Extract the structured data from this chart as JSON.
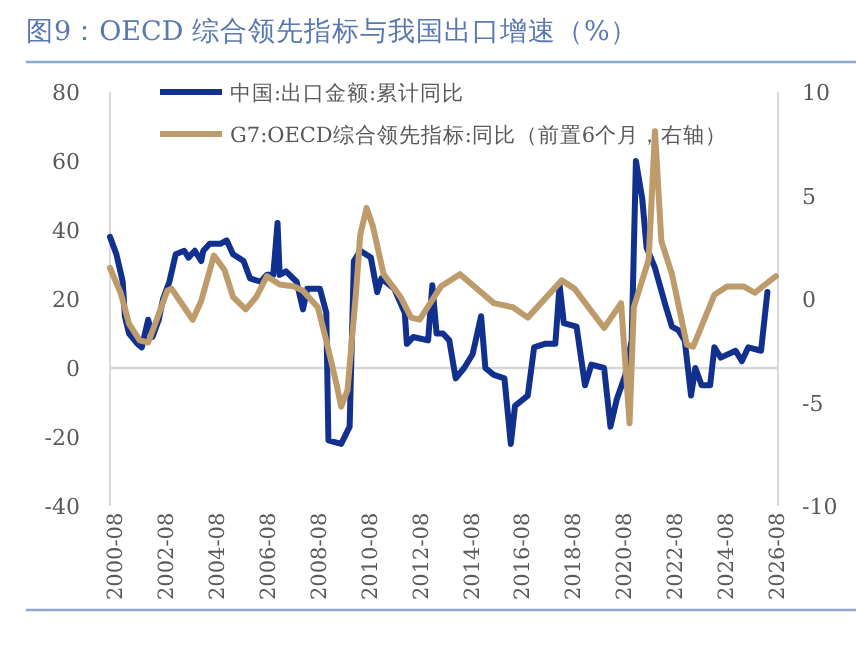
{
  "chart_data": {
    "type": "line",
    "title": "图9：OECD 综合领先指标与我国出口增速（%）",
    "xlim": [
      "2000-06",
      "2026-09"
    ],
    "xticks": [
      "2000-08",
      "2002-08",
      "2004-08",
      "2006-08",
      "2008-08",
      "2010-08",
      "2012-08",
      "2014-08",
      "2016-08",
      "2018-08",
      "2020-08",
      "2022-08",
      "2024-08",
      "2026-08"
    ],
    "ylim": [
      -40,
      80
    ],
    "yticks": [
      -40,
      -20,
      0,
      20,
      40,
      60,
      80
    ],
    "y2lim": [
      -10,
      10
    ],
    "y2ticks": [
      -10,
      -5,
      0,
      5,
      10
    ],
    "legend": "top left",
    "grid": false,
    "marker": "none",
    "line_style": "solid",
    "ref_lines": [
      {
        "axis": "y",
        "value": 0,
        "color": "#d9d9d9"
      }
    ],
    "series": [
      {
        "name": "中国:出口金额:累计同比",
        "color": "#12318f",
        "x": [
          "2000-06",
          "2000-09",
          "2000-12",
          "2001-01",
          "2001-03",
          "2001-07",
          "2001-09",
          "2001-12",
          "2002-02",
          "2002-05",
          "2002-07",
          "2002-10",
          "2003-01",
          "2003-05",
          "2003-07",
          "2003-10",
          "2004-01",
          "2004-02",
          "2004-05",
          "2004-10",
          "2005-01",
          "2005-04",
          "2005-09",
          "2005-12",
          "2006-05",
          "2006-08",
          "2006-11",
          "2007-01",
          "2007-02",
          "2007-05",
          "2007-10",
          "2008-01",
          "2008-03",
          "2008-09",
          "2008-12",
          "2009-01",
          "2009-07",
          "2009-11",
          "2010-01",
          "2010-04",
          "2010-09",
          "2010-12",
          "2011-02",
          "2011-08",
          "2012-01",
          "2012-02",
          "2012-05",
          "2012-12",
          "2013-02",
          "2013-04",
          "2013-07",
          "2013-10",
          "2014-01",
          "2014-05",
          "2014-09",
          "2015-01",
          "2015-03",
          "2015-07",
          "2015-12",
          "2016-03",
          "2016-05",
          "2016-11",
          "2017-02",
          "2017-07",
          "2017-12",
          "2018-02",
          "2018-04",
          "2018-10",
          "2019-02",
          "2019-05",
          "2019-11",
          "2020-02",
          "2020-05",
          "2020-09",
          "2020-12",
          "2021-02",
          "2021-05",
          "2021-07",
          "2021-11",
          "2022-04",
          "2022-07",
          "2022-10",
          "2023-01",
          "2023-04",
          "2023-06",
          "2023-09",
          "2024-01",
          "2024-03",
          "2024-06",
          "2025-01",
          "2025-04",
          "2025-07",
          "2026-01",
          "2026-04"
        ],
        "values": [
          38,
          33,
          25,
          15,
          10,
          7,
          6,
          14,
          9,
          14,
          20,
          25,
          33,
          34,
          32,
          34,
          31,
          34,
          36,
          36,
          37,
          33,
          31,
          26,
          25,
          27,
          27,
          42,
          27,
          28,
          25,
          17,
          23,
          23,
          16,
          -21,
          -22,
          -17,
          31,
          34,
          32,
          22,
          26,
          23,
          16,
          7,
          9,
          8,
          24,
          10,
          10,
          8,
          -3,
          0,
          4,
          15,
          0,
          -2,
          -3,
          -22,
          -11,
          -8,
          6,
          7,
          7,
          24,
          13,
          12,
          -5,
          1,
          0,
          -17,
          -9,
          -2,
          8,
          60,
          49,
          35,
          29,
          18,
          12,
          11,
          8,
          -8,
          0,
          -5,
          -5,
          6,
          3,
          5,
          2,
          6,
          5,
          22
        ]
      },
      {
        "name": "G7:OECD综合领先指标:同比（前置6个月，右轴）",
        "color": "#bd9b6b",
        "axis": "y2",
        "x": [
          "2000-06",
          "2000-11",
          "2001-03",
          "2001-08",
          "2001-12",
          "2002-04",
          "2002-09",
          "2002-11",
          "2003-03",
          "2003-09",
          "2004-01",
          "2004-07",
          "2004-12",
          "2005-04",
          "2005-10",
          "2006-03",
          "2006-08",
          "2007-02",
          "2007-09",
          "2008-01",
          "2008-08",
          "2008-12",
          "2009-05",
          "2009-07",
          "2009-10",
          "2010-02",
          "2010-04",
          "2010-07",
          "2010-10",
          "2011-03",
          "2011-11",
          "2012-04",
          "2012-08",
          "2013-06",
          "2014-03",
          "2015-07",
          "2016-04",
          "2016-11",
          "2018-03",
          "2018-09",
          "2019-11",
          "2020-07",
          "2020-11",
          "2021-01",
          "2021-08",
          "2021-11",
          "2022-02",
          "2022-07",
          "2023-02",
          "2023-05",
          "2024-03",
          "2024-09",
          "2025-05",
          "2025-10",
          "2026-08"
        ],
        "values": [
          1.5,
          0.3,
          -1.2,
          -2.0,
          -2.1,
          -1.0,
          0.4,
          0.5,
          -0.1,
          -1.0,
          -0.1,
          2.1,
          1.4,
          0.1,
          -0.5,
          0.1,
          1.1,
          0.7,
          0.6,
          0.4,
          -0.4,
          -2.0,
          -4.2,
          -5.2,
          -4.4,
          0.3,
          3.1,
          4.4,
          3.5,
          1.2,
          0.1,
          -0.9,
          -1.0,
          0.6,
          1.2,
          -0.2,
          -0.4,
          -0.9,
          0.9,
          0.5,
          -1.4,
          -0.2,
          -6.0,
          -0.4,
          1.9,
          8.1,
          2.8,
          1.2,
          -2.2,
          -2.3,
          0.2,
          0.6,
          0.6,
          0.3,
          1.1
        ]
      }
    ]
  }
}
